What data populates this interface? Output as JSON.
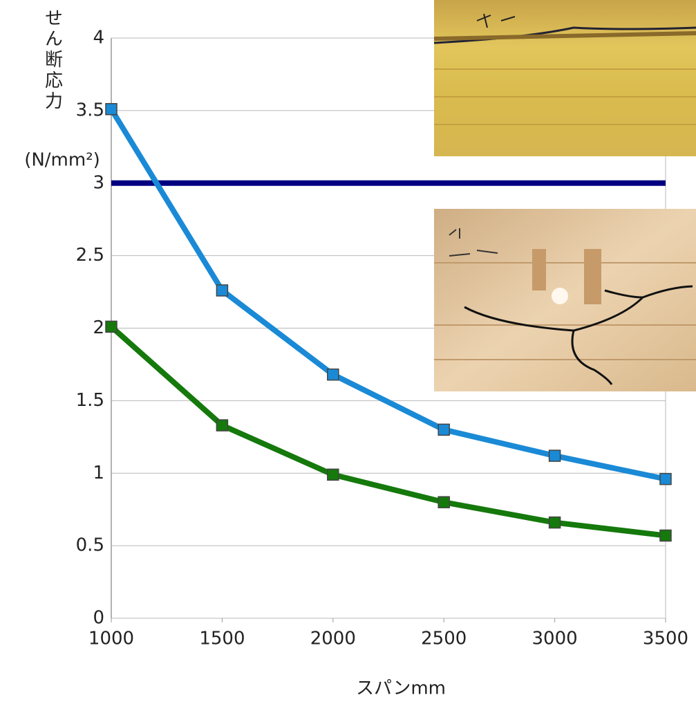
{
  "chart_data": {
    "type": "line",
    "y_label": [
      "せん断応力",
      "(N/mm²)"
    ],
    "x_label": "スパンmm",
    "x": [
      1000,
      1500,
      2000,
      2500,
      3000,
      3500
    ],
    "xlim": [
      1000,
      3500
    ],
    "xticks": [
      1000,
      1500,
      2000,
      2500,
      3000,
      3500
    ],
    "ylim": [
      0,
      4
    ],
    "yticks": [
      0,
      0.5,
      1,
      1.5,
      2,
      2.5,
      3,
      3.5,
      4
    ],
    "grid": true,
    "series": [
      {
        "color": "#000080",
        "marker": false,
        "values": [
          3,
          3,
          3,
          3,
          3,
          3
        ]
      },
      {
        "color": "#1a8ad6",
        "marker": true,
        "values": [
          3.51,
          2.26,
          1.68,
          1.3,
          1.12,
          0.96
        ]
      },
      {
        "color": "#15790c",
        "marker": true,
        "values": [
          2.01,
          1.33,
          0.99,
          0.8,
          0.66,
          0.57
        ]
      }
    ]
  }
}
